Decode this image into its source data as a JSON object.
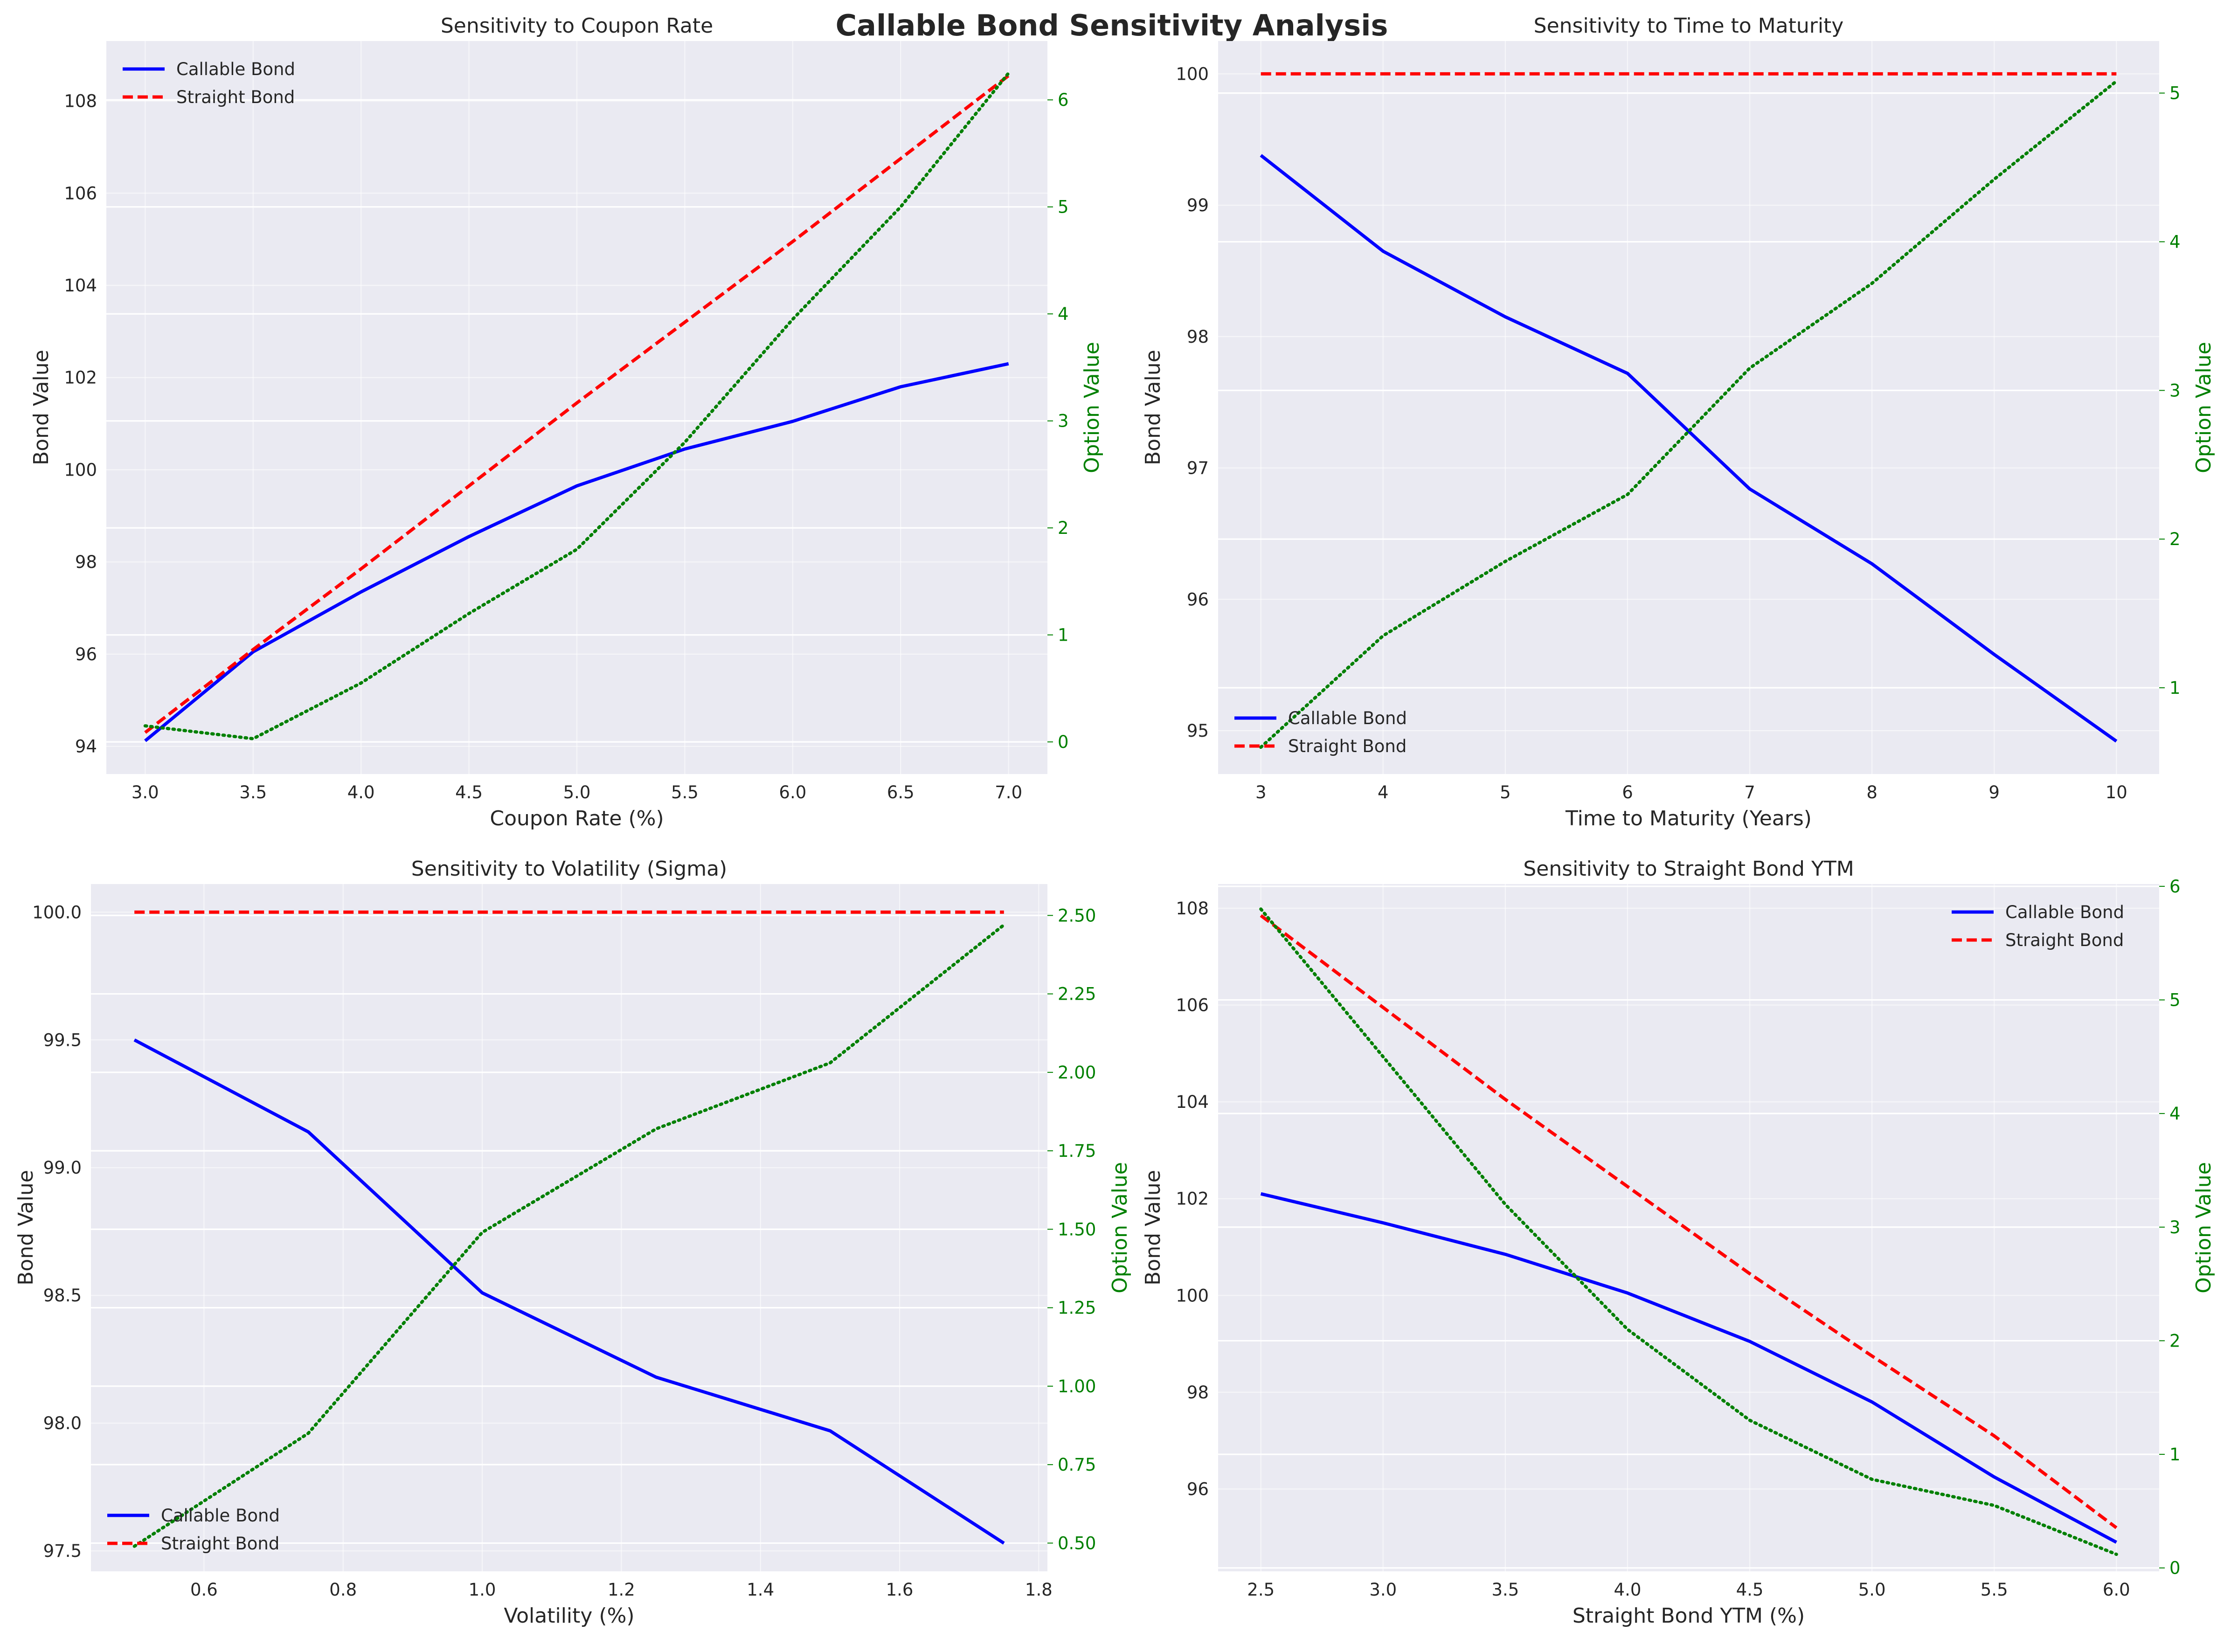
{
  "title": "Callable Bond Sensitivity Analysis",
  "colors": {
    "callable": "#0000ff",
    "straight": "#ff0000",
    "option": "#008000",
    "panel_bg": "#eaeaf2",
    "grid": "#ffffff"
  },
  "chart_data": [
    {
      "type": "line",
      "title": "Sensitivity to Coupon Rate",
      "xlabel": "Coupon Rate (%)",
      "ylabel": "Bond Value",
      "y2label": "Option Value",
      "x": [
        3.0,
        3.5,
        4.0,
        4.5,
        5.0,
        5.5,
        6.0,
        6.5,
        7.0
      ],
      "xlim": [
        2.82,
        7.18
      ],
      "ylim": [
        93.4,
        109.3
      ],
      "y2lim": [
        -0.3,
        6.55
      ],
      "xticks": [
        "3.0",
        "3.5",
        "4.0",
        "4.5",
        "5.0",
        "5.5",
        "6.0",
        "6.5",
        "7.0"
      ],
      "yticks": [
        "94",
        "96",
        "98",
        "100",
        "102",
        "104",
        "106",
        "108"
      ],
      "y2ticks": [
        "0",
        "1",
        "2",
        "3",
        "4",
        "5",
        "6"
      ],
      "legend": "upper left",
      "series": [
        {
          "name": "Callable Bond",
          "axis": "left",
          "style": "solid",
          "values": [
            94.12,
            96.05,
            97.35,
            98.55,
            99.65,
            100.45,
            101.05,
            101.8,
            102.3
          ]
        },
        {
          "name": "Straight Bond",
          "axis": "left",
          "style": "dashed",
          "values": [
            94.3,
            96.1,
            97.85,
            99.65,
            101.45,
            103.2,
            104.95,
            106.75,
            108.55
          ]
        },
        {
          "axis": "right",
          "style": "dotted",
          "values": [
            0.15,
            0.03,
            0.55,
            1.2,
            1.8,
            2.8,
            3.95,
            5.0,
            6.25
          ]
        }
      ]
    },
    {
      "type": "line",
      "title": "Sensitivity to Time to Maturity",
      "xlabel": "Time to Maturity (Years)",
      "ylabel": "Bond Value",
      "y2label": "Option Value",
      "x": [
        3,
        4,
        5,
        6,
        7,
        8,
        9,
        10
      ],
      "xlim": [
        2.65,
        10.35
      ],
      "ylim": [
        94.67,
        100.25
      ],
      "y2lim": [
        0.42,
        5.35
      ],
      "xticks": [
        "3",
        "4",
        "5",
        "6",
        "7",
        "8",
        "9",
        "10"
      ],
      "yticks": [
        "95",
        "96",
        "97",
        "98",
        "99",
        "100"
      ],
      "y2ticks": [
        "1",
        "2",
        "3",
        "4",
        "5"
      ],
      "legend": "lower left",
      "series": [
        {
          "name": "Callable Bond",
          "axis": "left",
          "style": "solid",
          "values": [
            99.38,
            98.65,
            98.15,
            97.72,
            96.84,
            96.27,
            95.58,
            94.92
          ]
        },
        {
          "name": "Straight Bond",
          "axis": "left",
          "style": "dashed",
          "values": [
            100.0,
            100.0,
            100.0,
            100.0,
            100.0,
            100.0,
            100.0,
            100.0
          ]
        },
        {
          "axis": "right",
          "style": "dotted",
          "values": [
            0.6,
            1.35,
            1.85,
            2.3,
            3.15,
            3.72,
            4.42,
            5.08
          ]
        }
      ]
    },
    {
      "type": "line",
      "title": "Sensitivity to Volatility (Sigma)",
      "xlabel": "Volatility (%)",
      "ylabel": "Bond Value",
      "y2label": "Option Value",
      "x": [
        0.5,
        0.75,
        1.0,
        1.25,
        1.5,
        1.75
      ],
      "xlim": [
        0.4375,
        1.8125
      ],
      "ylim": [
        97.42,
        100.11
      ],
      "y2lim": [
        0.41,
        2.6
      ],
      "xticks": [
        "0.6",
        "0.8",
        "1.0",
        "1.2",
        "1.4",
        "1.6",
        "1.8"
      ],
      "xtick_values": [
        0.6,
        0.8,
        1.0,
        1.2,
        1.4,
        1.6,
        1.8
      ],
      "yticks": [
        "97.5",
        "98.0",
        "98.5",
        "99.0",
        "99.5",
        "100.0"
      ],
      "y2ticks": [
        "0.50",
        "0.75",
        "1.00",
        "1.25",
        "1.50",
        "1.75",
        "2.00",
        "2.25",
        "2.50"
      ],
      "legend": "lower left",
      "series": [
        {
          "name": "Callable Bond",
          "axis": "left",
          "style": "solid",
          "values": [
            99.5,
            99.14,
            98.51,
            98.18,
            97.97,
            97.53
          ]
        },
        {
          "name": "Straight Bond",
          "axis": "left",
          "style": "dashed",
          "values": [
            100.0,
            100.0,
            100.0,
            100.0,
            100.0,
            100.0
          ]
        },
        {
          "axis": "right",
          "style": "dotted",
          "values": [
            0.49,
            0.85,
            1.49,
            1.82,
            2.03,
            2.47
          ]
        }
      ]
    },
    {
      "type": "line",
      "title": "Sensitivity to Straight Bond YTM",
      "xlabel": "Straight Bond YTM (%)",
      "ylabel": "Bond Value",
      "y2label": "Option Value",
      "x": [
        2.5,
        3.0,
        3.5,
        4.0,
        4.5,
        5.0,
        5.5,
        6.0
      ],
      "xlim": [
        2.325,
        6.175
      ],
      "ylim": [
        94.3,
        108.5
      ],
      "y2lim": [
        -0.03,
        6.02
      ],
      "xticks": [
        "2.5",
        "3.0",
        "3.5",
        "4.0",
        "4.5",
        "5.0",
        "5.5",
        "6.0"
      ],
      "yticks": [
        "96",
        "98",
        "100",
        "102",
        "104",
        "106",
        "108"
      ],
      "y2ticks": [
        "0",
        "1",
        "2",
        "3",
        "4",
        "5",
        "6"
      ],
      "legend": "upper right",
      "series": [
        {
          "name": "Callable Bond",
          "axis": "left",
          "style": "solid",
          "values": [
            102.1,
            101.5,
            100.85,
            100.05,
            99.05,
            97.8,
            96.25,
            94.9
          ]
        },
        {
          "name": "Straight Bond",
          "axis": "left",
          "style": "dashed",
          "values": [
            107.85,
            105.95,
            104.05,
            102.25,
            100.45,
            98.75,
            97.1,
            95.2
          ]
        },
        {
          "axis": "right",
          "style": "dotted",
          "values": [
            5.8,
            4.5,
            3.2,
            2.1,
            1.3,
            0.78,
            0.55,
            0.12
          ]
        }
      ]
    }
  ]
}
